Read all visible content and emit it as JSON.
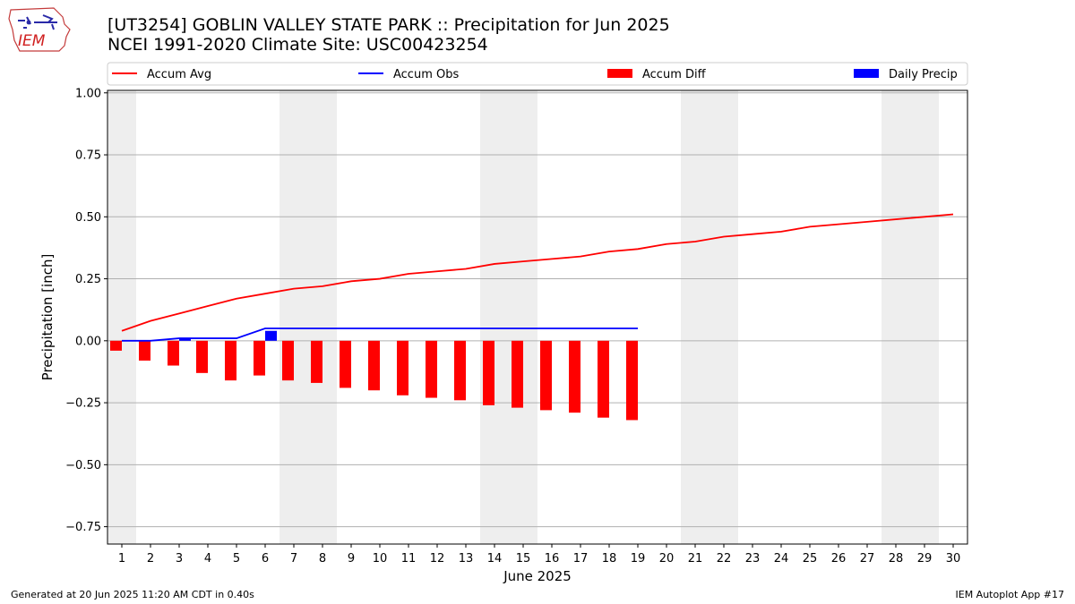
{
  "header": {
    "title_line1": "[UT3254] GOBLIN VALLEY STATE PARK :: Precipitation for Jun 2025",
    "title_line2": "NCEI 1991-2020 Climate Site: USC00423254",
    "logo_text": "IEM"
  },
  "footer": {
    "generated": "Generated at 20 Jun 2025 11:20 AM CDT in 0.40s",
    "app": "IEM Autoplot App #17"
  },
  "chart_data": {
    "type": "bar",
    "xlabel": "June 2025",
    "ylabel": "Precipitation [inch]",
    "xlim": [
      0.5,
      30.5
    ],
    "ylim": [
      -0.82,
      1.01
    ],
    "yticks": [
      -0.75,
      -0.5,
      -0.25,
      0.0,
      0.25,
      0.5,
      0.75,
      1.0
    ],
    "ytick_labels": [
      "−0.75",
      "−0.50",
      "−0.25",
      "0.00",
      "0.25",
      "0.50",
      "0.75",
      "1.00"
    ],
    "categories": [
      "1",
      "2",
      "3",
      "4",
      "5",
      "6",
      "7",
      "8",
      "9",
      "10",
      "11",
      "12",
      "13",
      "14",
      "15",
      "16",
      "17",
      "18",
      "19",
      "20",
      "21",
      "22",
      "23",
      "24",
      "25",
      "26",
      "27",
      "28",
      "29",
      "30"
    ],
    "grid": "horizontal",
    "legend_position": "top",
    "weekend_shading": [
      [
        0.5,
        1.5
      ],
      [
        6.5,
        8.5
      ],
      [
        13.5,
        15.5
      ],
      [
        20.5,
        22.5
      ],
      [
        27.5,
        29.5
      ]
    ],
    "series": [
      {
        "name": "Accum Avg",
        "kind": "line",
        "color": "#ff0000",
        "x": [
          1,
          2,
          3,
          4,
          5,
          6,
          7,
          8,
          9,
          10,
          11,
          12,
          13,
          14,
          15,
          16,
          17,
          18,
          19,
          20,
          21,
          22,
          23,
          24,
          25,
          26,
          27,
          28,
          29,
          30
        ],
        "values": [
          0.04,
          0.08,
          0.11,
          0.14,
          0.17,
          0.19,
          0.21,
          0.22,
          0.24,
          0.25,
          0.27,
          0.28,
          0.29,
          0.31,
          0.32,
          0.33,
          0.34,
          0.36,
          0.37,
          0.39,
          0.4,
          0.42,
          0.43,
          0.44,
          0.46,
          0.47,
          0.48,
          0.49,
          0.5,
          0.51
        ]
      },
      {
        "name": "Accum Obs",
        "kind": "line",
        "color": "#0000ff",
        "x": [
          1,
          2,
          3,
          4,
          5,
          6,
          7,
          8,
          9,
          10,
          11,
          12,
          13,
          14,
          15,
          16,
          17,
          18,
          19
        ],
        "values": [
          0.0,
          0.0,
          0.01,
          0.01,
          0.01,
          0.05,
          0.05,
          0.05,
          0.05,
          0.05,
          0.05,
          0.05,
          0.05,
          0.05,
          0.05,
          0.05,
          0.05,
          0.05,
          0.05
        ]
      },
      {
        "name": "Accum Diff",
        "kind": "bar",
        "color": "#ff0000",
        "x": [
          1,
          2,
          3,
          4,
          5,
          6,
          7,
          8,
          9,
          10,
          11,
          12,
          13,
          14,
          15,
          16,
          17,
          18,
          19
        ],
        "values": [
          -0.04,
          -0.08,
          -0.1,
          -0.13,
          -0.16,
          -0.14,
          -0.16,
          -0.17,
          -0.19,
          -0.2,
          -0.22,
          -0.23,
          -0.24,
          -0.26,
          -0.27,
          -0.28,
          -0.29,
          -0.31,
          -0.32
        ]
      },
      {
        "name": "Daily Precip",
        "kind": "bar",
        "color": "#0000ff",
        "x": [
          1,
          2,
          3,
          4,
          5,
          6,
          7,
          8,
          9,
          10,
          11,
          12,
          13,
          14,
          15,
          16,
          17,
          18,
          19
        ],
        "values": [
          0,
          0,
          0.01,
          0,
          0,
          0.04,
          0,
          0,
          0,
          0,
          0,
          0,
          0,
          0,
          0,
          0,
          0,
          0,
          0
        ]
      }
    ]
  }
}
